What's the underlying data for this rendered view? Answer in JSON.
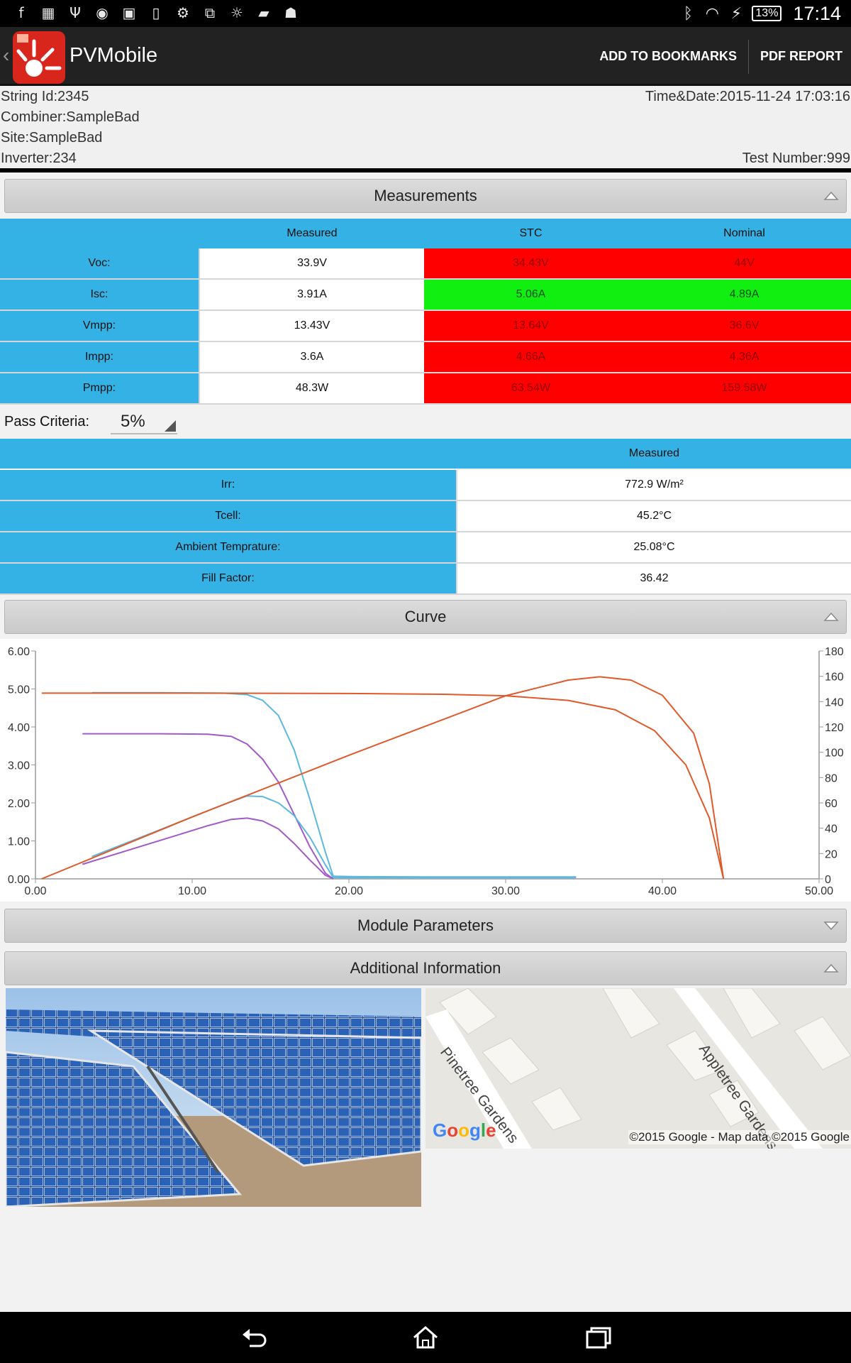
{
  "status_bar": {
    "time": "17:14",
    "battery": "13%",
    "left_icons": [
      "facebook-icon",
      "calendar-icon",
      "usb-icon",
      "messenger-icon",
      "gallery-icon",
      "phone-icon",
      "usb-debug-icon",
      "screens-icon",
      "bulb-icon",
      "folder-icon",
      "android-icon"
    ],
    "right_icons": [
      "bluetooth-icon",
      "wifi-icon",
      "charging-icon"
    ]
  },
  "app_bar": {
    "title": "PVMobile",
    "add_bookmarks": "ADD TO BOOKMARKS",
    "pdf_report": "PDF REPORT",
    "brand_color": "#d9261c"
  },
  "header": {
    "string_id": "String Id:2345",
    "combiner": "Combiner:SampleBad",
    "site": "Site:SampleBad",
    "inverter": "Inverter:234",
    "time_date": "Time&Date:2015-11-24 17:03:16",
    "test_number": "Test Number:999"
  },
  "measurements": {
    "title": "Measurements",
    "columns": [
      "Measured",
      "STC",
      "Nominal"
    ],
    "rows": [
      {
        "label": "Voc:",
        "measured": "33.9V",
        "stc": "34.43V",
        "nominal": "44V",
        "status": "fail"
      },
      {
        "label": "Isc:",
        "measured": "3.91A",
        "stc": "5.06A",
        "nominal": "4.89A",
        "status": "pass"
      },
      {
        "label": "Vmpp:",
        "measured": "13.43V",
        "stc": "13.64V",
        "nominal": "36.6V",
        "status": "fail"
      },
      {
        "label": "Impp:",
        "measured": "3.6A",
        "stc": "4.66A",
        "nominal": "4.36A",
        "status": "fail"
      },
      {
        "label": "Pmpp:",
        "measured": "48.3W",
        "stc": "63.54W",
        "nominal": "159.58W",
        "status": "fail"
      }
    ],
    "pass_criteria_label": "Pass Criteria:",
    "pass_criteria_value": "5%",
    "env_column": "Measured",
    "env_rows": [
      {
        "label": "Irr:",
        "value": "772.9 W/m²"
      },
      {
        "label": "Tcell:",
        "value": "45.2°C"
      },
      {
        "label": "Ambient Temprature:",
        "value": "25.08°C"
      },
      {
        "label": "Fill Factor:",
        "value": "36.42"
      }
    ]
  },
  "curve": {
    "title": "Curve"
  },
  "chart_data": {
    "type": "line",
    "xlim": [
      0,
      50
    ],
    "ylim_left": [
      0,
      6
    ],
    "ylim_right": [
      0,
      180
    ],
    "x_ticks": [
      "0.00",
      "10.00",
      "20.00",
      "30.00",
      "40.00",
      "50.00"
    ],
    "y_left_ticks": [
      "0.00",
      "1.00",
      "2.00",
      "3.00",
      "4.00",
      "5.00",
      "6.00"
    ],
    "y_right_ticks": [
      "0",
      "20",
      "40",
      "60",
      "80",
      "100",
      "120",
      "140",
      "160",
      "180"
    ],
    "series": [
      {
        "color": "#5bb8e0",
        "axis": "left",
        "x": [
          3.6,
          8,
          12,
          13.5,
          14.5,
          15.5,
          16.5,
          17.5,
          18.5,
          19,
          20,
          25,
          30,
          34.5
        ],
        "y": [
          4.9,
          4.9,
          4.89,
          4.85,
          4.7,
          4.3,
          3.4,
          2.1,
          0.7,
          0.07,
          0.06,
          0.05,
          0.05,
          0.05
        ]
      },
      {
        "color": "#a259c9",
        "axis": "left",
        "x": [
          3,
          8,
          11,
          12.5,
          13.5,
          14.5,
          15.5,
          16.5,
          17.5,
          18.5,
          19
        ],
        "y": [
          3.82,
          3.82,
          3.81,
          3.75,
          3.55,
          3.15,
          2.55,
          1.7,
          0.85,
          0.15,
          0.0
        ]
      },
      {
        "color": "#5bb8e0",
        "axis": "right",
        "x": [
          3.6,
          8,
          12,
          13.5,
          14.5,
          15.5,
          16.5,
          17.5,
          18.5,
          19,
          20,
          25,
          30,
          34.5
        ],
        "y": [
          17.6,
          39,
          58.7,
          65.5,
          65,
          60,
          50,
          33,
          11,
          1,
          1,
          1,
          1,
          1
        ]
      },
      {
        "color": "#a259c9",
        "axis": "right",
        "x": [
          3,
          8,
          11,
          12.5,
          13.5,
          14.5,
          15.5,
          16.5,
          17.5,
          18.5,
          19
        ],
        "y": [
          11.5,
          30.5,
          42,
          47,
          48,
          45.7,
          39.5,
          28,
          15,
          2.8,
          0
        ]
      },
      {
        "color": "#e0592a",
        "axis": "left",
        "x": [
          0.4,
          10,
          20,
          26,
          30,
          34,
          37,
          39.5,
          41.5,
          43,
          43.9
        ],
        "y": [
          4.89,
          4.89,
          4.88,
          4.86,
          4.82,
          4.7,
          4.45,
          3.9,
          3.0,
          1.6,
          0.0
        ]
      },
      {
        "color": "#e0592a",
        "axis": "right",
        "x": [
          0.4,
          10,
          20,
          30,
          34,
          36,
          38,
          40,
          42,
          43,
          43.9
        ],
        "y": [
          0,
          48.9,
          97.6,
          144.6,
          157,
          159.6,
          157,
          145,
          115,
          75,
          0
        ]
      }
    ]
  },
  "module_parameters": {
    "title": "Module Parameters"
  },
  "additional_information": {
    "title": "Additional Information",
    "map_labels": [
      "Pinetree Gardens",
      "Appletree Gardens"
    ],
    "map_copyright": "©2015 Google - Map data ©2015 Google",
    "google_logo": "Google"
  },
  "nav_bar": {
    "icons": [
      "back-icon",
      "home-icon",
      "recent-apps-icon"
    ]
  }
}
